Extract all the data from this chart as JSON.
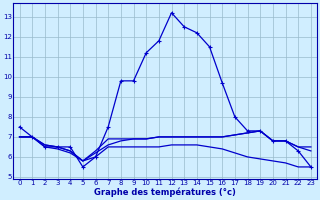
{
  "xlabel": "Graphe des températures (°c)",
  "x_ticks": [
    0,
    1,
    2,
    3,
    4,
    5,
    6,
    7,
    8,
    9,
    10,
    11,
    12,
    13,
    14,
    15,
    16,
    17,
    18,
    19,
    20,
    21,
    22,
    23
  ],
  "yticks": [
    5,
    6,
    7,
    8,
    9,
    10,
    11,
    12,
    13
  ],
  "line1": {
    "x": [
      0,
      1,
      2,
      3,
      4,
      5,
      6,
      7,
      8,
      9,
      10,
      11,
      12,
      13,
      14,
      15,
      16,
      17,
      18,
      19,
      20,
      21,
      22,
      23
    ],
    "y": [
      7.5,
      7.0,
      6.5,
      6.5,
      6.5,
      5.5,
      6.0,
      7.5,
      9.8,
      9.8,
      11.2,
      11.8,
      13.2,
      12.5,
      12.2,
      11.5,
      9.7,
      8.0,
      7.3,
      7.3,
      6.8,
      6.8,
      6.3,
      5.5
    ],
    "color": "#0000cc",
    "marker": "+"
  },
  "line2": {
    "x": [
      0,
      1,
      2,
      3,
      4,
      5,
      6,
      7,
      8,
      9,
      10,
      11,
      12,
      13,
      14,
      15,
      16,
      17,
      18,
      19,
      20,
      21,
      22,
      23
    ],
    "y": [
      7.0,
      7.0,
      6.6,
      6.5,
      6.3,
      5.8,
      6.2,
      6.6,
      6.8,
      6.9,
      6.9,
      7.0,
      7.0,
      7.0,
      7.0,
      7.0,
      7.0,
      7.1,
      7.2,
      7.3,
      6.8,
      6.8,
      6.5,
      6.5
    ],
    "color": "#0000cc",
    "marker": null
  },
  "line3": {
    "x": [
      0,
      1,
      2,
      3,
      4,
      5,
      6,
      7,
      8,
      9,
      10,
      11,
      12,
      13,
      14,
      15,
      16,
      17,
      18,
      19,
      20,
      21,
      22,
      23
    ],
    "y": [
      7.0,
      7.0,
      6.6,
      6.5,
      6.3,
      5.8,
      6.3,
      6.9,
      6.9,
      6.9,
      6.9,
      7.0,
      7.0,
      7.0,
      7.0,
      7.0,
      7.0,
      7.1,
      7.2,
      7.3,
      6.8,
      6.8,
      6.5,
      6.3
    ],
    "color": "#0000cc",
    "marker": null
  },
  "line4": {
    "x": [
      0,
      1,
      2,
      3,
      4,
      5,
      6,
      7,
      8,
      9,
      10,
      11,
      12,
      13,
      14,
      15,
      16,
      17,
      18,
      19,
      20,
      21,
      22,
      23
    ],
    "y": [
      7.0,
      7.0,
      6.5,
      6.4,
      6.2,
      5.8,
      6.0,
      6.5,
      6.5,
      6.5,
      6.5,
      6.5,
      6.6,
      6.6,
      6.6,
      6.5,
      6.4,
      6.2,
      6.0,
      5.9,
      5.8,
      5.7,
      5.5,
      5.5
    ],
    "color": "#0000cc",
    "marker": null
  },
  "bg_color": "#d0eeff",
  "grid_color": "#99bbcc",
  "axis_color": "#0000aa",
  "line_color": "#0000cc",
  "line_width": 0.9,
  "marker_size": 3.5,
  "tick_fontsize": 5.0,
  "xlabel_fontsize": 6.0
}
